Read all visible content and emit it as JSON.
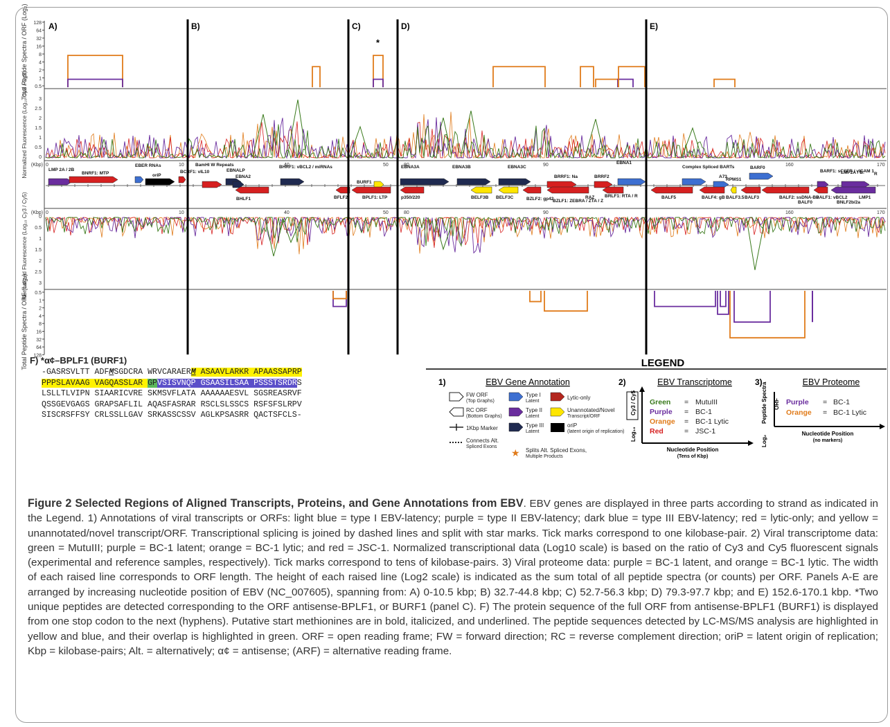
{
  "panels": {
    "labels": [
      "A)",
      "B)",
      "C)",
      "D)",
      "E)"
    ],
    "star": "*",
    "kbp_unit": "(Kbp)",
    "top_axis_title": "Total Peptide Spectra / ORF (Log₂)",
    "mid_axis_title": "Normalized Fluorescence (Log₁₀ Cy3 / Cy5)",
    "top_ticks": [
      "128",
      "64",
      "32",
      "16",
      "8",
      "4",
      "2",
      "1",
      "0.5"
    ],
    "fluor_ticks": [
      "3",
      "2.5",
      "2",
      "1.5",
      "1",
      "0.5",
      "0"
    ],
    "bottom_ticks": [
      "0.5",
      "1",
      "2",
      "4",
      "8",
      "16",
      "32",
      "64",
      "128"
    ],
    "kbp_ticks": {
      "A": [
        "0",
        "10"
      ],
      "B": [
        "40"
      ],
      "C": [
        "50"
      ],
      "D": [
        "80",
        "90"
      ],
      "E": [
        "160",
        "170"
      ]
    }
  },
  "genes": {
    "forward": [
      "LMP 2A / 2B",
      "BNRF1: MTP",
      "EBER RNAs",
      "oriP",
      "BCRF1: vIL10",
      "BamHI W Repeats",
      "EBNALP",
      "EBNA2",
      "BHRF1: vBCL2 / miRNAs",
      "BURF1",
      "EBNA3A",
      "EBNA3B",
      "EBNA3C",
      "BRRF1: Na",
      "BRRF2",
      "EBNA1",
      "Complex Spliced BARTs",
      "A73",
      "RPMS1",
      "BARF0",
      "BARF1: sCSFR / vICAM 1",
      "LMP2A / B:",
      "R"
    ],
    "forward_notes": [
      "(BCR Mimic)",
      "(Anti-Apoptotic, PKR Inhibitor)",
      "(Coactivator)",
      "(TF-Activator)",
      "(α¢-BPLF1)",
      "(JkBP, BimModulator)",
      "(JkBP)",
      "(JkBP, BimModulator)",
      "(Lytic Accessory)",
      "(Replication/ Maintenance / TF)",
      "(miRNAs Within Introns)",
      "(Continues after Terminal Repeats)",
      "(ARF)",
      "BKRF1.5"
    ],
    "reverse": [
      "BHLF1",
      "BFLF2",
      "BPLF1: LTP",
      "p350/220",
      "BELF3B",
      "BELF3C",
      "BZLF2: gp42",
      "BZLF1: ZEBRA / ZTA / Z",
      "RAZ",
      "BRLF1: RTA / R",
      "BALF5",
      "BALF4: gB",
      "BALF3.5",
      "BALF3",
      "BALF2: ssDNA-BP",
      "BALF0",
      "BALF1: vBCL2",
      "BNLF2b/2a",
      "LMP1"
    ],
    "reverse_notes": [
      "(Repeat Protein)",
      "(α¢-EBNA3B)",
      "(α¢-EBNA3C)",
      "(Lytic Switch)",
      "(Lytic Coactivator)",
      "(DNA Polymerase)",
      "(N/C/FL)",
      "(ARF)",
      "(Assembly)",
      "(Oncogenic CD40 Homologue)"
    ]
  },
  "sequence": {
    "title": "F) *α¢–BPLF1 (BURF1)",
    "rows": [
      [
        {
          "t": "-GASRSVLTT ADF",
          "h": ""
        },
        {
          "t": "M",
          "h": "m"
        },
        {
          "t": "SGDCRA WRVCARAER",
          "h": ""
        },
        {
          "t": "M",
          "h": "my"
        },
        {
          "t": " ASAAVLARKR APAASSAPRP",
          "h": "y"
        }
      ],
      [
        {
          "t": "PPPSLAVAAG VAGQASSLAR ",
          "h": "y"
        },
        {
          "t": "GP",
          "h": "g"
        },
        {
          "t": "VSISVNQP GSAASILSAA PSSSTSRDR",
          "h": "b"
        },
        {
          "t": "S",
          "h": ""
        }
      ],
      [
        {
          "t": "LSLLTLVIPN SIAARICVRE SKMSVFLATA AAAAAAESVL SGSREASRVF",
          "h": ""
        }
      ],
      [
        {
          "t": "QSSGEVGAGS GRAPSAFLIL AQASFASRAR RSCLSLSSCS RSFSFSLRPV",
          "h": ""
        }
      ],
      [
        {
          "t": "SISCRSFFSY CRLSSLLGAV SRKASSCSSV AGLKPSASRR QACTSFCLS-",
          "h": ""
        }
      ]
    ]
  },
  "legend": {
    "title": "LEGEND",
    "s1_num": "1)",
    "s1_title": "EBV Gene Annotation",
    "s1_items": [
      {
        "shape": "fw",
        "label": "FW ORF",
        "sub": "(Top Graphs)"
      },
      {
        "shape": "rc",
        "label": "RC ORF",
        "sub": "(Bottom Graphs)"
      },
      {
        "shape": "marker",
        "label": "1Kbp Marker",
        "sub": ""
      },
      {
        "shape": "dots",
        "label": "Connects Alt.",
        "sub": "Spliced Exons"
      },
      {
        "shape": "type1",
        "label": "Type I",
        "sub": "Latent",
        "color": "#3d6fd1"
      },
      {
        "shape": "type2",
        "label": "Type II",
        "sub": "Latent",
        "color": "#6a2d9e"
      },
      {
        "shape": "type3",
        "label": "Type III",
        "sub": "Latent",
        "color": "#1f2a50"
      },
      {
        "shape": "orip",
        "label": "oriP",
        "sub": "(latent origin of replication)"
      },
      {
        "shape": "lytic",
        "label": "Lytic-only",
        "sub": "",
        "color": "#b3261e"
      },
      {
        "shape": "novel",
        "label": "Unannotated/Novel",
        "sub": "Transcript/ORF",
        "color": "#ffe600"
      },
      {
        "shape": "star",
        "label": "Splits Alt. Spliced Exons,",
        "sub": "Multiple Products"
      }
    ],
    "s2_num": "2)",
    "s2_title": "EBV Transcriptome",
    "s2_ylabel": "Log₁₀",
    "s2_box": "Cy3 / Cy5",
    "s2_items": [
      {
        "name": "Green",
        "value": "MutuIII",
        "color": "#3a7a1c"
      },
      {
        "name": "Purple",
        "value": "BC-1",
        "color": "#6a2d9e"
      },
      {
        "name": "Orange",
        "value": "BC-1 Lytic",
        "color": "#e07b1a"
      },
      {
        "name": "Red",
        "value": "JSC-1",
        "color": "#d62020"
      }
    ],
    "s2_xlabel": "Nucleotide Position",
    "s2_xsub": "(Tens of Kbp)",
    "s3_num": "3)",
    "s3_title": "EBV Proteome",
    "s3_ylabel": "Log₂",
    "s3_box": "Peptide Spectra",
    "s3_orf": "ORF",
    "s3_items": [
      {
        "name": "Purple",
        "value": "BC-1",
        "color": "#6a2d9e"
      },
      {
        "name": "Orange",
        "value": "BC-1 Lytic",
        "color": "#e07b1a"
      }
    ],
    "s3_xlabel": "Nucleotide Position",
    "s3_xsub": "(no markers)",
    "eq": "="
  },
  "caption": {
    "title": "Figure 2 Selected Regions of Aligned Transcripts, Proteins, and Gene Annotations from EBV",
    "body": ". EBV genes are displayed in three parts according to strand as indicated in the Legend. 1) Annotations of viral transcripts or ORFs: light blue = type I EBV-latency; purple = type II EBV-latency; dark blue = type III EBV-latency; red = lytic-only; and yellow = unannotated/novel transcript/ORF. Transcriptional splicing is joined by dashed lines and split with star marks. Tick marks correspond to one kilobase-pair. 2) Viral transcriptome data: green = MutuIII; purple = BC-1 latent; orange = BC-1 lytic; and red = JSC-1. Normalized transcriptional data (Log10 scale) is based on the ratio of Cy3 and Cy5 fluorescent signals (experimental and reference samples, respectively). Tick marks correspond to tens of kilobase-pairs. 3) Viral proteome data: purple = BC-1 latent, and orange = BC-1 lytic. The width of each raised line corresponds to ORF length. The height of each raised line (Log2 scale) is indicated as the sum total of all peptide spectra (or counts) per ORF. Panels A-E are arranged by increasing nucleotide position of EBV (NC_007605), spanning from: A) 0-10.5 kbp; B) 32.7-44.8 kbp; C) 52.7-56.3 kbp; D) 79.3-97.7 kbp; and E) 152.6-170.1 kbp. *Two unique peptides are detected corresponding to the ORF antisense-BPLF1, or BURF1 (panel C). F) The protein sequence of the full ORF from antisense-BPLF1 (BURF1) is displayed from one stop codon to the next (hyphens). Putative start methionines are in bold, italicized, and underlined. The peptide sequences detected by LC-MS/MS analysis are highlighted in yellow and blue, and their overlap is highlighted in green. ORF = open reading frame; FW = forward direction; RC = reverse complement direction; oriP = latent origin of replication; Kbp = kilobase-pairs; Alt. = alternatively; α¢ = antisense; (ARF) = alternative reading frame."
  },
  "colors": {
    "green": "#3a7a1c",
    "purple": "#6a2d9e",
    "orange": "#e07b1a",
    "red": "#d62020",
    "lightblue": "#3d6fd1",
    "darkblue": "#1f2a50",
    "yellow": "#ffe600"
  }
}
